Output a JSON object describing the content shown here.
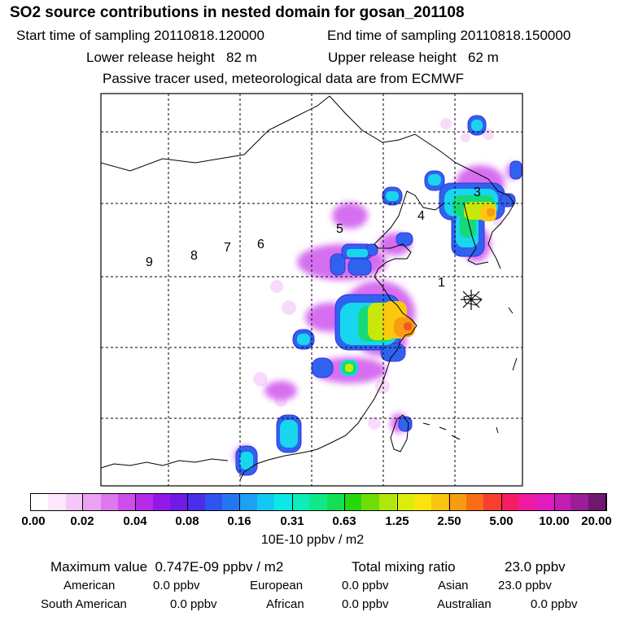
{
  "header": {
    "title": "SO2 source contributions in nested domain for gosan_201108",
    "start_time": "Start time of sampling 20110818.120000",
    "end_time": "End time of sampling 20110818.150000",
    "lower_release": "Lower release height   82 m",
    "upper_release": "Upper release height   62 m",
    "note": "Passive tracer used, meteorological data are from ECMWF"
  },
  "map": {
    "region_labels": [
      "1",
      "3",
      "4",
      "5",
      "6",
      "7",
      "8",
      "9"
    ],
    "receptor_marker": "receptor-star"
  },
  "legend": {
    "colors": [
      "#ffffff",
      "#fde7fd",
      "#f5c6f8",
      "#eca2f3",
      "#df78ee",
      "#cf4deb",
      "#b62aea",
      "#9418e8",
      "#6f1ae7",
      "#4a2ee9",
      "#2f53ee",
      "#2378f2",
      "#1ea1f4",
      "#14c8f3",
      "#0ce8e6",
      "#0cedb8",
      "#10e88a",
      "#12df53",
      "#28d80e",
      "#6fde08",
      "#aee70b",
      "#dced0e",
      "#fae410",
      "#f9c510",
      "#f99c12",
      "#f96c18",
      "#f73e2f",
      "#f51d64",
      "#ef1aa2",
      "#e21bc1",
      "#c41cb6",
      "#9c1d98",
      "#6e186e"
    ],
    "ticks": [
      "0.00",
      "0.02",
      "0.04",
      "0.08",
      "0.16",
      "0.31",
      "0.63",
      "1.25",
      "2.50",
      "5.00",
      "10.00",
      "20.00"
    ],
    "unit": "10E-10 ppbv / m2"
  },
  "summary": {
    "max_label": "Maximum value  0.747E-09 ppbv / m2",
    "total_label": "Total mixing ratio",
    "total_value": "23.0 ppbv",
    "sources": [
      {
        "name": "American",
        "value": "0.0 ppbv"
      },
      {
        "name": "European",
        "value": "0.0 ppbv"
      },
      {
        "name": "Asian",
        "value": "23.0 ppbv"
      },
      {
        "name": "South American",
        "value": "0.0 ppbv"
      },
      {
        "name": "African",
        "value": "0.0 ppbv"
      },
      {
        "name": "Australian",
        "value": "0.0 ppbv"
      }
    ]
  }
}
